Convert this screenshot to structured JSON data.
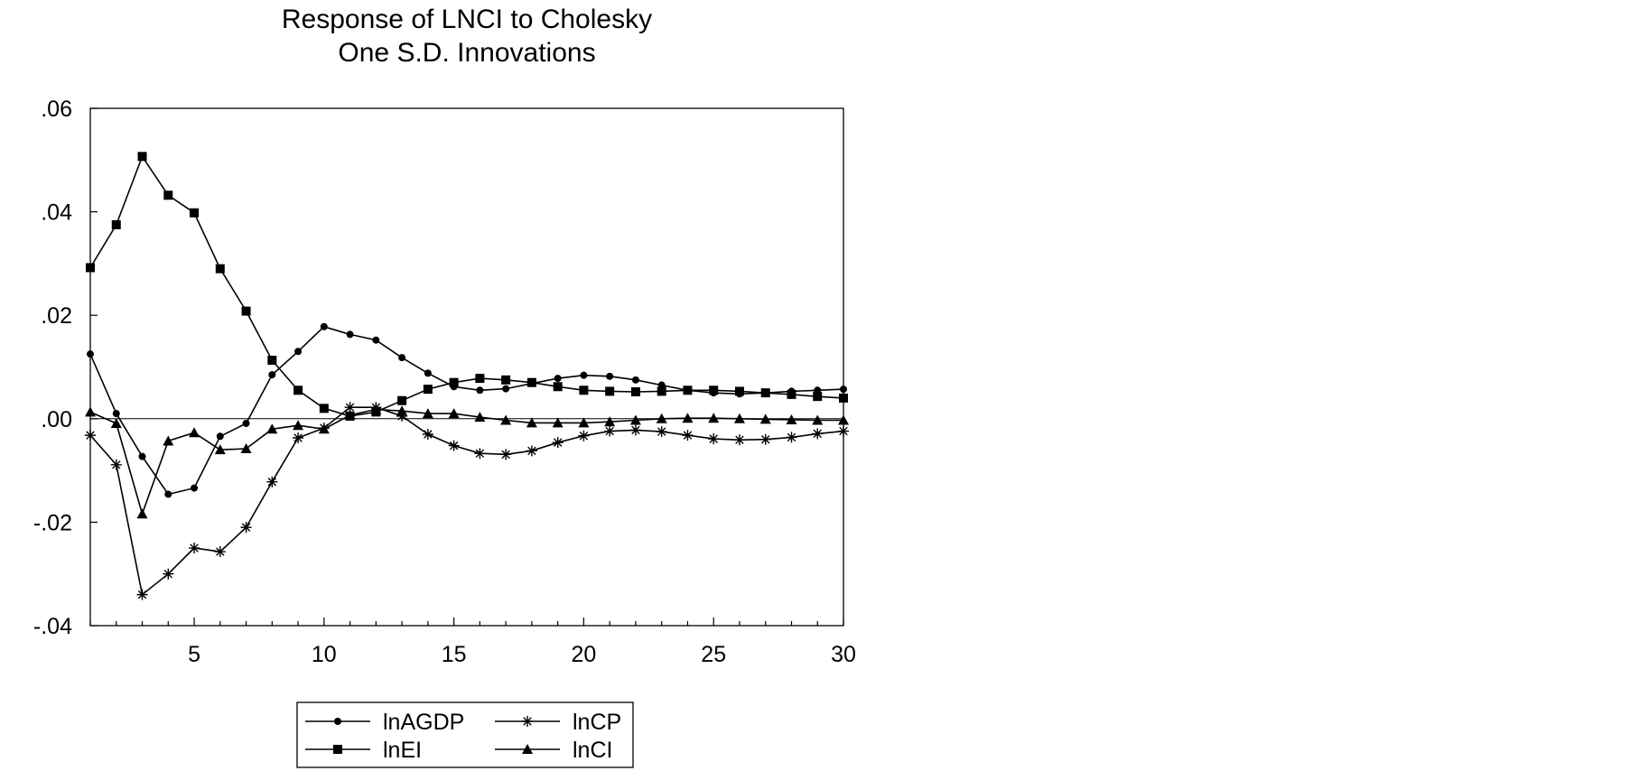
{
  "chart_data": {
    "type": "line",
    "title": [
      "Response of LNCI to Cholesky",
      "One S.D. Innovations"
    ],
    "xlabel": "",
    "ylabel": "",
    "xlim": [
      1,
      30
    ],
    "ylim": [
      -0.04,
      0.06
    ],
    "x_ticks": [
      5,
      10,
      15,
      20,
      25,
      30
    ],
    "x_tick_labels": [
      "5",
      "10",
      "15",
      "20",
      "25",
      "30"
    ],
    "y_ticks": [
      -0.04,
      -0.02,
      0.0,
      0.02,
      0.04,
      0.06
    ],
    "y_tick_labels": [
      "-.04",
      "-.02",
      ".00",
      ".02",
      ".04",
      ".06"
    ],
    "zero_line": true,
    "legend_position": "bottom-center",
    "colors": {
      "line": "#000000",
      "background": "#ffffff"
    },
    "x": [
      1,
      2,
      3,
      4,
      5,
      6,
      7,
      8,
      9,
      10,
      11,
      12,
      13,
      14,
      15,
      16,
      17,
      18,
      19,
      20,
      21,
      22,
      23,
      24,
      25,
      26,
      27,
      28,
      29,
      30
    ],
    "series": [
      {
        "name": "lnAGDP",
        "marker": "circle",
        "values": [
          0.0125,
          0.001,
          -0.0073,
          -0.0146,
          -0.0134,
          -0.0034,
          -0.0009,
          0.0085,
          0.013,
          0.0178,
          0.0163,
          0.0152,
          0.0118,
          0.0088,
          0.0062,
          0.0055,
          0.0058,
          0.0068,
          0.0078,
          0.0084,
          0.0082,
          0.0075,
          0.0065,
          0.0055,
          0.005,
          0.0048,
          0.005,
          0.0053,
          0.0055,
          0.0057
        ]
      },
      {
        "name": "lnCP",
        "marker": "star",
        "values": [
          -0.0032,
          -0.0089,
          -0.034,
          -0.03,
          -0.025,
          -0.0257,
          -0.021,
          -0.0122,
          -0.0037,
          -0.0018,
          0.0022,
          0.0022,
          0.0005,
          -0.003,
          -0.0052,
          -0.0067,
          -0.0069,
          -0.0062,
          -0.0046,
          -0.0033,
          -0.0024,
          -0.0022,
          -0.0025,
          -0.0032,
          -0.0039,
          -0.0041,
          -0.004,
          -0.0036,
          -0.0029,
          -0.0024
        ]
      },
      {
        "name": "lnEI",
        "marker": "square",
        "values": [
          0.0292,
          0.0375,
          0.0507,
          0.0432,
          0.0398,
          0.029,
          0.0208,
          0.0113,
          0.0055,
          0.002,
          0.0005,
          0.0013,
          0.0035,
          0.0057,
          0.007,
          0.0078,
          0.0075,
          0.007,
          0.0062,
          0.0055,
          0.0053,
          0.0052,
          0.0053,
          0.0055,
          0.0055,
          0.0053,
          0.005,
          0.0047,
          0.0043,
          0.004
        ]
      },
      {
        "name": "lnCI",
        "marker": "triangle",
        "values": [
          0.0013,
          -0.0009,
          -0.0184,
          -0.0043,
          -0.0027,
          -0.006,
          -0.0058,
          -0.002,
          -0.0013,
          -0.002,
          0.0007,
          0.0018,
          0.0015,
          0.001,
          0.001,
          0.0003,
          -0.0003,
          -0.0008,
          -0.0008,
          -0.0008,
          -0.0006,
          -0.0003,
          0.0,
          0.0001,
          0.0001,
          0.0,
          -0.0001,
          -0.0002,
          -0.0003,
          -0.0003
        ]
      }
    ],
    "legend_order": [
      "lnAGDP",
      "lnCP",
      "lnEI",
      "lnCI"
    ]
  }
}
